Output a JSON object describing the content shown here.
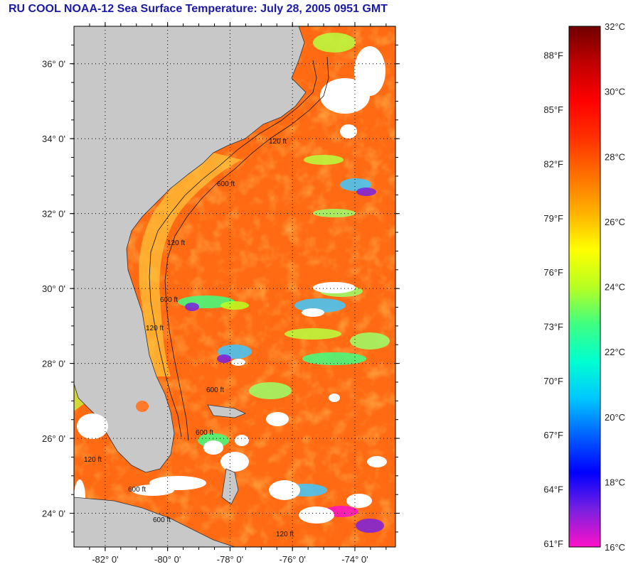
{
  "title": "RU COOL  NOAA-12  Sea Surface Temperature:  July 28, 2005 0951 GMT",
  "map": {
    "lon_range": [
      -83.0,
      -72.7
    ],
    "lat_range": [
      23.1,
      37.0
    ],
    "lat_ticks": [
      "36° 0'",
      "34° 0'",
      "32° 0'",
      "30° 0'",
      "28° 0'",
      "26° 0'",
      "24° 0'"
    ],
    "lat_tick_values": [
      36,
      34,
      32,
      30,
      28,
      26,
      24
    ],
    "lon_ticks": [
      "-82° 0'",
      "-80° 0'",
      "-78° 0'",
      "-76° 0'",
      "-74° 0'"
    ],
    "lon_tick_values": [
      -82,
      -80,
      -78,
      -76,
      -74
    ],
    "isobath_labels": [
      "120 ft",
      "600 ft",
      "120 ft",
      "600 ft",
      "120 ft",
      "600 ft",
      "600 ft",
      "600 ft",
      "120 ft",
      "600 ft",
      "120 ft"
    ],
    "colors": {
      "land": "#c8c8c8",
      "cloud": "#ffffff",
      "warm_water": "#ff6a12",
      "cool_patch": "#9aff6a",
      "grid": "#000000"
    }
  },
  "colorbar": {
    "range_c": [
      16,
      32
    ],
    "celsius_labels": [
      "32°C",
      "30°C",
      "28°C",
      "26°C",
      "24°C",
      "22°C",
      "20°C",
      "18°C",
      "16°C"
    ],
    "celsius_values": [
      32,
      30,
      28,
      26,
      24,
      22,
      20,
      18,
      16
    ],
    "fahrenheit_labels": [
      "88°F",
      "85°F",
      "82°F",
      "79°F",
      "76°F",
      "73°F",
      "70°F",
      "67°F",
      "64°F",
      "61°F"
    ],
    "fahrenheit_values": [
      88,
      85,
      82,
      79,
      76,
      73,
      70,
      67,
      64,
      61
    ],
    "gradient": [
      "#ff10c8",
      "#7a20e0",
      "#0000ff",
      "#0060ff",
      "#00c8ff",
      "#00ffd0",
      "#40ff80",
      "#b8ff20",
      "#ffff00",
      "#ffb000",
      "#ff7000",
      "#ff3000",
      "#ff0000",
      "#c00000",
      "#700000"
    ]
  }
}
